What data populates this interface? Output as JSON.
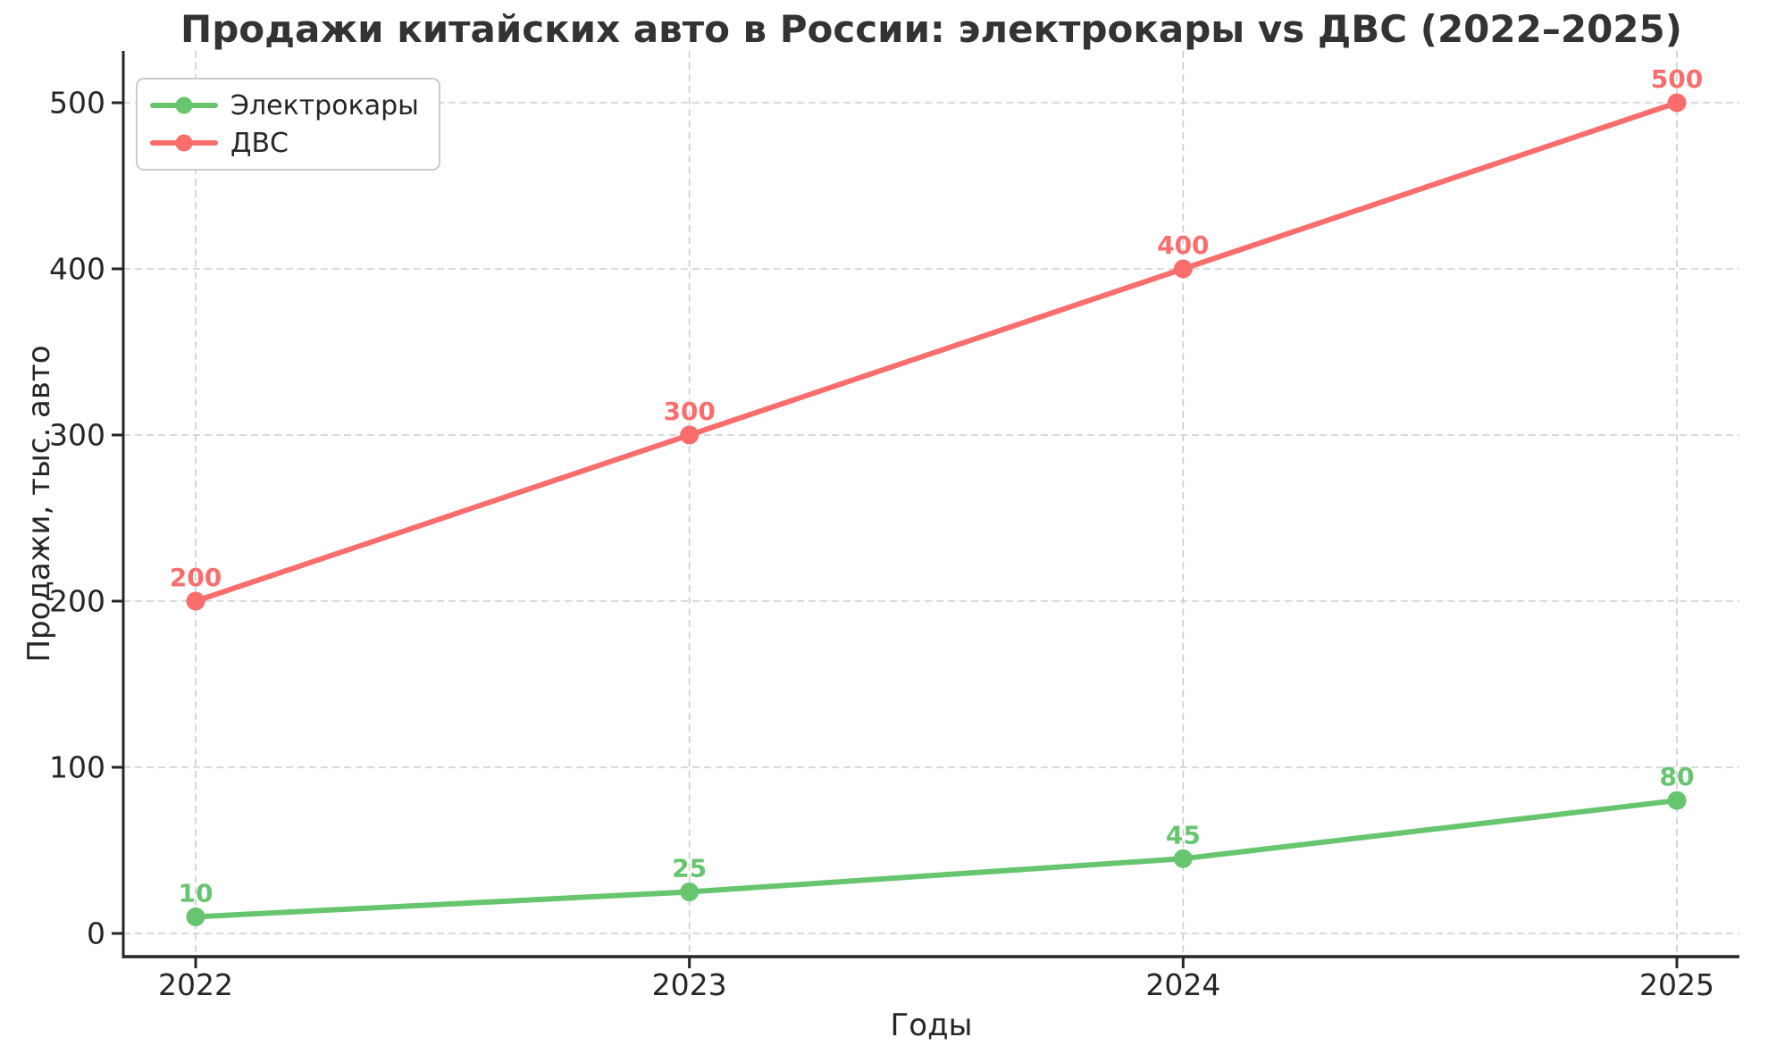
{
  "chart_data": {
    "type": "line",
    "title": "Продажи китайских авто в России: электрокары vs ДВС (2022–2025)",
    "xlabel": "Годы",
    "ylabel": "Продажи, тыс. авто",
    "categories": [
      "2022",
      "2023",
      "2024",
      "2025"
    ],
    "series": [
      {
        "name": "Электрокары",
        "values": [
          10,
          25,
          45,
          80
        ],
        "color": "#67c56f"
      },
      {
        "name": "ДВС",
        "values": [
          200,
          300,
          400,
          500
        ],
        "color": "#fa6d6d"
      }
    ],
    "yticks": [
      0,
      100,
      200,
      300,
      400,
      500
    ],
    "ylim": [
      -14,
      531
    ],
    "xlim_categories": [
      "2022",
      "2025"
    ],
    "grid": true,
    "grid_style": "dashed",
    "legend_position": "upper left",
    "data_labels": true,
    "marker": "circle",
    "colors": {
      "grid": "#cdcdcd",
      "axis": "#262626",
      "title_text": "#333333",
      "tick_text": "#262626",
      "background": "#ffffff"
    }
  }
}
